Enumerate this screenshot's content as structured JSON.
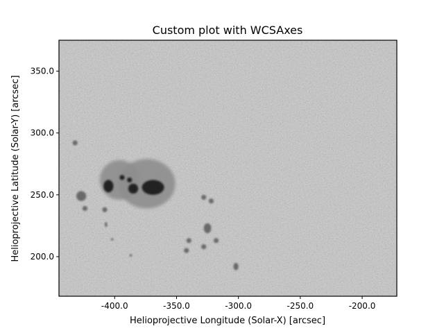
{
  "figure": {
    "title": "Custom plot with WCSAxes",
    "colors": {
      "background": "#ffffff",
      "frame": "#000000",
      "image_base": "#c8c8c8"
    }
  },
  "image": {
    "description_type": "solar sunspot group, grayscale continuum intensity",
    "colormap": "gray"
  },
  "chart_data": {
    "type": "heatmap",
    "title": "Custom plot with WCSAxes",
    "xlabel": "Helioprojective Longitude (Solar-X) [arcsec]",
    "ylabel": "Helioprojective Latitude (Solar-Y) [arcsec]",
    "xlim": [
      -445,
      -172
    ],
    "ylim": [
      168,
      375
    ],
    "xticks": [
      {
        "value": -400,
        "label": "-400.0"
      },
      {
        "value": -350,
        "label": "-350.0"
      },
      {
        "value": -300,
        "label": "-300.0"
      },
      {
        "value": -250,
        "label": "-250.0"
      },
      {
        "value": -200,
        "label": "-200.0"
      }
    ],
    "yticks": [
      {
        "value": 200,
        "label": "200.0"
      },
      {
        "value": 250,
        "label": "250.0"
      },
      {
        "value": 300,
        "label": "300.0"
      },
      {
        "value": 350,
        "label": "350.0"
      }
    ],
    "grid": false,
    "features": [
      {
        "kind": "penumbra",
        "x": -396,
        "y": 262,
        "rx": 16,
        "ry": 16
      },
      {
        "kind": "penumbra",
        "x": -374,
        "y": 259,
        "rx": 23,
        "ry": 20
      },
      {
        "kind": "umbra",
        "x": -405,
        "y": 257,
        "rx": 4,
        "ry": 5
      },
      {
        "kind": "umbra",
        "x": -369,
        "y": 256,
        "rx": 9,
        "ry": 6
      },
      {
        "kind": "umbra",
        "x": -385,
        "y": 255,
        "rx": 4,
        "ry": 4
      },
      {
        "kind": "umbra",
        "x": -394,
        "y": 264,
        "rx": 2,
        "ry": 2
      },
      {
        "kind": "umbra",
        "x": -388,
        "y": 262,
        "rx": 2,
        "ry": 2
      },
      {
        "kind": "pore",
        "x": -427,
        "y": 249,
        "rx": 4,
        "ry": 4
      },
      {
        "kind": "pore",
        "x": -432,
        "y": 292,
        "rx": 2,
        "ry": 2
      },
      {
        "kind": "pore",
        "x": -424,
        "y": 239,
        "rx": 2,
        "ry": 2
      },
      {
        "kind": "pore",
        "x": -325,
        "y": 223,
        "rx": 3,
        "ry": 4
      },
      {
        "kind": "pore",
        "x": -322,
        "y": 245,
        "rx": 2,
        "ry": 2
      },
      {
        "kind": "pore",
        "x": -328,
        "y": 248,
        "rx": 2,
        "ry": 2
      },
      {
        "kind": "pore",
        "x": -340,
        "y": 213,
        "rx": 2,
        "ry": 2
      },
      {
        "kind": "pore",
        "x": -342,
        "y": 205,
        "rx": 2,
        "ry": 2
      },
      {
        "kind": "pore",
        "x": -318,
        "y": 213,
        "rx": 2,
        "ry": 2
      },
      {
        "kind": "pore",
        "x": -328,
        "y": 208,
        "rx": 2,
        "ry": 2
      },
      {
        "kind": "pore",
        "x": -302,
        "y": 192,
        "rx": 2,
        "ry": 3
      },
      {
        "kind": "pore",
        "x": -408,
        "y": 238,
        "rx": 2,
        "ry": 2
      },
      {
        "kind": "pore",
        "x": -407,
        "y": 226,
        "rx": 1,
        "ry": 2
      },
      {
        "kind": "pore",
        "x": -402,
        "y": 214,
        "rx": 1,
        "ry": 1
      },
      {
        "kind": "pore",
        "x": -387,
        "y": 201,
        "rx": 1,
        "ry": 1
      }
    ]
  }
}
